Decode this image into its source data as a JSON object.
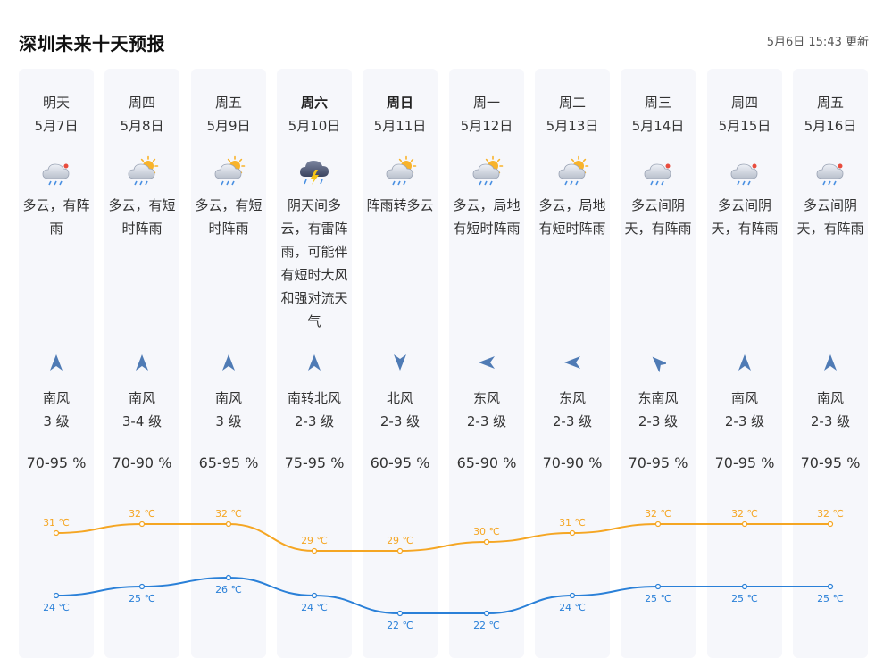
{
  "header": {
    "title": "深圳未来十天预报",
    "updated": "5月6日 15:43 更新"
  },
  "colors": {
    "high_line": "#f5a623",
    "low_line": "#2a80d8",
    "card_bg": "#f6f7fb"
  },
  "days": [
    {
      "weekday": "明天",
      "date": "5月7日",
      "bold": false,
      "icon": "cloud-rain-icon",
      "desc": "多云，有阵雨",
      "wind_dir": "南风",
      "wind_level": "3 级",
      "humidity": "70-95 %",
      "wind_angle": 0
    },
    {
      "weekday": "周四",
      "date": "5月8日",
      "bold": false,
      "icon": "sun-cloud-rain-icon",
      "desc": "多云，有短时阵雨",
      "wind_dir": "南风",
      "wind_level": "3-4 级",
      "humidity": "70-90 %",
      "wind_angle": 0
    },
    {
      "weekday": "周五",
      "date": "5月9日",
      "bold": false,
      "icon": "sun-cloud-rain-icon",
      "desc": "多云，有短时阵雨",
      "wind_dir": "南风",
      "wind_level": "3 级",
      "humidity": "65-95 %",
      "wind_angle": 0
    },
    {
      "weekday": "周六",
      "date": "5月10日",
      "bold": true,
      "icon": "thunderstorm-icon",
      "desc": "阴天间多云，有雷阵雨，可能伴有短时大风和强对流天气",
      "wind_dir": "南转北风",
      "wind_level": "2-3 级",
      "humidity": "75-95 %",
      "wind_angle": 0
    },
    {
      "weekday": "周日",
      "date": "5月11日",
      "bold": true,
      "icon": "sun-cloud-rain-icon",
      "desc": "阵雨转多云",
      "wind_dir": "北风",
      "wind_level": "2-3 级",
      "humidity": "60-95 %",
      "wind_angle": 180
    },
    {
      "weekday": "周一",
      "date": "5月12日",
      "bold": false,
      "icon": "sun-cloud-rain-icon",
      "desc": "多云，局地有短时阵雨",
      "wind_dir": "东风",
      "wind_level": "2-3 级",
      "humidity": "65-90 %",
      "wind_angle": 270
    },
    {
      "weekday": "周二",
      "date": "5月13日",
      "bold": false,
      "icon": "sun-cloud-rain-icon",
      "desc": "多云，局地有短时阵雨",
      "wind_dir": "东风",
      "wind_level": "2-3 级",
      "humidity": "70-90 %",
      "wind_angle": 270
    },
    {
      "weekday": "周三",
      "date": "5月14日",
      "bold": false,
      "icon": "cloud-rain-icon",
      "desc": "多云间阴天，有阵雨",
      "wind_dir": "东南风",
      "wind_level": "2-3 级",
      "humidity": "70-95 %",
      "wind_angle": 315
    },
    {
      "weekday": "周四",
      "date": "5月15日",
      "bold": false,
      "icon": "cloud-rain-icon",
      "desc": "多云间阴天，有阵雨",
      "wind_dir": "南风",
      "wind_level": "2-3 级",
      "humidity": "70-95 %",
      "wind_angle": 0
    },
    {
      "weekday": "周五",
      "date": "5月16日",
      "bold": false,
      "icon": "cloud-rain-icon",
      "desc": "多云间阴天，有阵雨",
      "wind_dir": "南风",
      "wind_level": "2-3 级",
      "humidity": "70-95 %",
      "wind_angle": 0
    }
  ],
  "chart_data": {
    "type": "line",
    "categories": [
      "5月7日",
      "5月8日",
      "5月9日",
      "5月10日",
      "5月11日",
      "5月12日",
      "5月13日",
      "5月14日",
      "5月15日",
      "5月16日"
    ],
    "unit": "℃",
    "series": [
      {
        "key": "high",
        "values": [
          31,
          32,
          32,
          29,
          29,
          30,
          31,
          32,
          32,
          32
        ]
      },
      {
        "key": "low",
        "values": [
          24,
          25,
          26,
          24,
          22,
          22,
          24,
          25,
          25,
          25
        ]
      }
    ],
    "ylim": [
      22,
      32
    ],
    "labels": {
      "high": [
        "31 ℃",
        "32 ℃",
        "32 ℃",
        "29 ℃",
        "29 ℃",
        "30 ℃",
        "31 ℃",
        "32 ℃",
        "32 ℃",
        "32 ℃"
      ],
      "low": [
        "24 ℃",
        "25 ℃",
        "26 ℃",
        "24 ℃",
        "22 ℃",
        "22 ℃",
        "24 ℃",
        "25 ℃",
        "25 ℃",
        "25 ℃"
      ]
    },
    "grid": false,
    "legend": "none"
  }
}
